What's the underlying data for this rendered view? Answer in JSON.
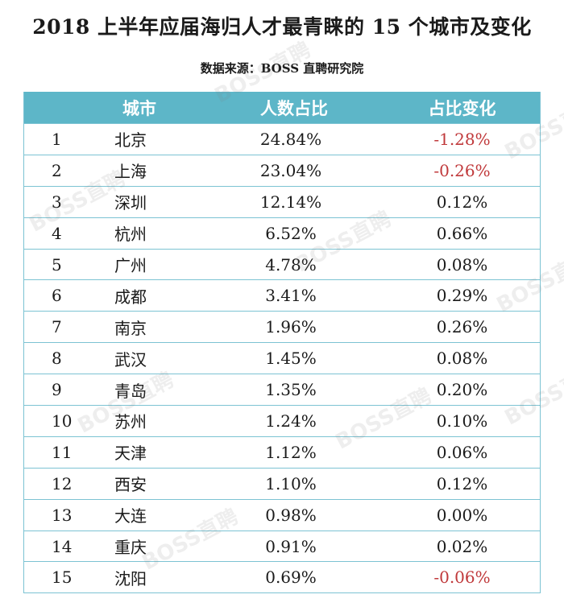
{
  "header": {
    "title": "2018 上半年应届海归人才最青睐的 15 个城市及变化",
    "source": "数据来源：BOSS 直聘研究院"
  },
  "watermark_text": "BOSS直聘",
  "colors": {
    "header_bg": "#5db6c8",
    "negative": "#c0393b",
    "border": "#7cc3d3"
  },
  "chart_data": {
    "type": "table",
    "title": "2018 上半年应届海归人才最青睐的 15 个城市及变化",
    "columns": [
      "",
      "城市",
      "人数占比",
      "占比变化"
    ],
    "rows": [
      {
        "rank": "1",
        "city": "北京",
        "share": "24.84%",
        "change": "-1.28%",
        "negative": true
      },
      {
        "rank": "2",
        "city": "上海",
        "share": "23.04%",
        "change": "-0.26%",
        "negative": true
      },
      {
        "rank": "3",
        "city": "深圳",
        "share": "12.14%",
        "change": "0.12%",
        "negative": false
      },
      {
        "rank": "4",
        "city": "杭州",
        "share": "6.52%",
        "change": "0.66%",
        "negative": false
      },
      {
        "rank": "5",
        "city": "广州",
        "share": "4.78%",
        "change": "0.08%",
        "negative": false
      },
      {
        "rank": "6",
        "city": "成都",
        "share": "3.41%",
        "change": "0.29%",
        "negative": false
      },
      {
        "rank": "7",
        "city": "南京",
        "share": "1.96%",
        "change": "0.26%",
        "negative": false
      },
      {
        "rank": "8",
        "city": "武汉",
        "share": "1.45%",
        "change": "0.08%",
        "negative": false
      },
      {
        "rank": "9",
        "city": "青岛",
        "share": "1.35%",
        "change": "0.20%",
        "negative": false
      },
      {
        "rank": "10",
        "city": "苏州",
        "share": "1.24%",
        "change": "0.10%",
        "negative": false
      },
      {
        "rank": "11",
        "city": "天津",
        "share": "1.12%",
        "change": "0.06%",
        "negative": false
      },
      {
        "rank": "12",
        "city": "西安",
        "share": "1.10%",
        "change": "0.12%",
        "negative": false
      },
      {
        "rank": "13",
        "city": "大连",
        "share": "0.98%",
        "change": "0.00%",
        "negative": false
      },
      {
        "rank": "14",
        "city": "重庆",
        "share": "0.91%",
        "change": "0.02%",
        "negative": false
      },
      {
        "rank": "15",
        "city": "沈阳",
        "share": "0.69%",
        "change": "-0.06%",
        "negative": true
      }
    ]
  }
}
